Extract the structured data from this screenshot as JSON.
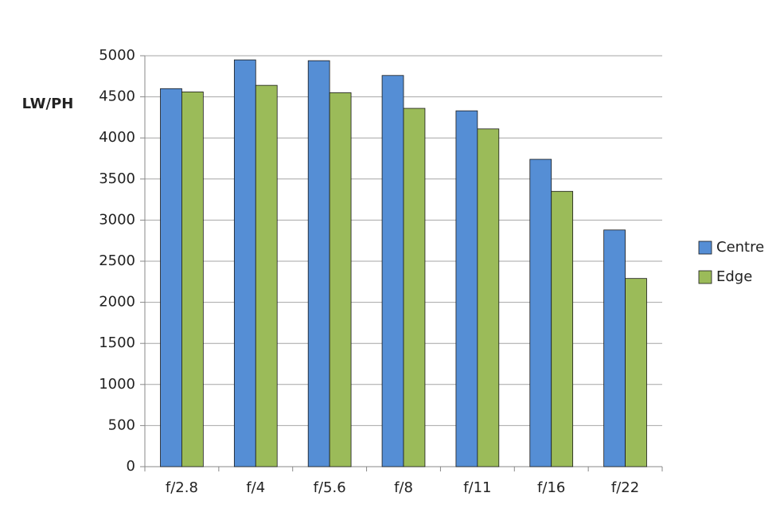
{
  "chart_data": {
    "type": "bar",
    "y_label": "LW/PH",
    "categories": [
      "f/2.8",
      "f/4",
      "f/5.6",
      "f/8",
      "f/11",
      "f/16",
      "f/22"
    ],
    "series": [
      {
        "name": "Centre",
        "color": "#558ed5",
        "values": [
          4600,
          4950,
          4940,
          4760,
          4330,
          3740,
          2880
        ]
      },
      {
        "name": "Edge",
        "color": "#9bbb59",
        "values": [
          4560,
          4640,
          4550,
          4360,
          4110,
          3350,
          2290
        ]
      }
    ],
    "ylim": [
      0,
      5000
    ],
    "yticks": [
      0,
      500,
      1000,
      1500,
      2000,
      2500,
      3000,
      3500,
      4000,
      4500,
      5000
    ],
    "grid": true,
    "legend": "right"
  }
}
